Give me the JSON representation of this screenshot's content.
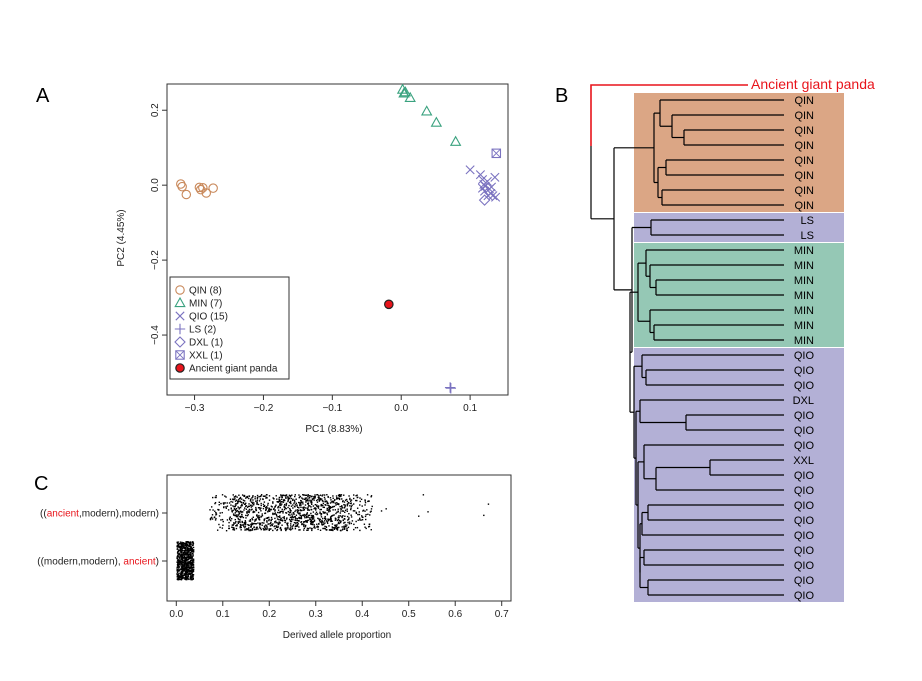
{
  "panels": {
    "a": "A",
    "b": "B",
    "c": "C"
  },
  "colors": {
    "QIN": "#c9895b",
    "MIN": "#3aa27f",
    "QIO": "#7b73c0",
    "LS": "#7b73c0",
    "DXL": "#7b73c0",
    "XXL": "#7b73c0",
    "ancient": "#e8141b",
    "qin_box": "#dba685",
    "min_box": "#95c8b5",
    "qio_box": "#b3b0d6"
  },
  "chart_data": [
    {
      "type": "scatter",
      "xlabel": "PC1 (8.83%)",
      "ylabel": "PC2 (4.45%)",
      "xlim": [
        -0.34,
        0.155
      ],
      "ylim": [
        -0.56,
        0.27
      ],
      "xticks": [
        -0.3,
        -0.2,
        -0.1,
        0.0,
        0.1
      ],
      "xtick_labels": [
        "−0.3",
        "−0.2",
        "−0.1",
        "0.0",
        "0.1"
      ],
      "yticks": [
        0.2,
        0.0,
        -0.2,
        -0.4
      ],
      "ytick_labels": [
        "0.2",
        "0.0",
        "−0.2",
        "−0.4"
      ],
      "legend": [
        {
          "label": "QIN (8)",
          "marker": "circle",
          "color": "#c9895b"
        },
        {
          "label": "MIN (7)",
          "marker": "triangle",
          "color": "#3aa27f"
        },
        {
          "label": "QIO (15)",
          "marker": "x",
          "color": "#7b73c0"
        },
        {
          "label": "LS (2)",
          "marker": "plus",
          "color": "#7b73c0"
        },
        {
          "label": "DXL (1)",
          "marker": "diamond",
          "color": "#7b73c0"
        },
        {
          "label": "XXL (1)",
          "marker": "square",
          "color": "#7b73c0"
        },
        {
          "label": "Ancient giant panda",
          "marker": "filled-circle",
          "color": "#e8141b"
        }
      ],
      "series": [
        {
          "name": "QIN (8)",
          "marker": "circle",
          "color": "#c9895b",
          "points": [
            [
              -0.32,
              0.003
            ],
            [
              -0.318,
              -0.004
            ],
            [
              -0.312,
              -0.025
            ],
            [
              -0.293,
              -0.006
            ],
            [
              -0.291,
              -0.012
            ],
            [
              -0.288,
              -0.007
            ],
            [
              -0.283,
              -0.021
            ],
            [
              -0.273,
              -0.008
            ]
          ]
        },
        {
          "name": "MIN (7)",
          "marker": "triangle",
          "color": "#3aa27f",
          "points": [
            [
              0.002,
              0.255
            ],
            [
              0.004,
              0.245
            ],
            [
              0.013,
              0.233
            ],
            [
              0.037,
              0.197
            ],
            [
              0.051,
              0.167
            ],
            [
              0.079,
              0.116
            ],
            [
              0.006,
              0.248
            ]
          ]
        },
        {
          "name": "QIO (15)",
          "marker": "x",
          "color": "#7b73c0",
          "points": [
            [
              0.1,
              0.041
            ],
            [
              0.115,
              0.028
            ],
            [
              0.12,
              0.002
            ],
            [
              0.118,
              -0.008
            ],
            [
              0.121,
              -0.016
            ],
            [
              0.125,
              0.01
            ],
            [
              0.126,
              -0.028
            ],
            [
              0.128,
              -0.01
            ],
            [
              0.13,
              -0.022
            ],
            [
              0.133,
              -0.028
            ],
            [
              0.136,
              0.021
            ],
            [
              0.137,
              -0.032
            ],
            [
              0.122,
              -0.003
            ],
            [
              0.131,
              -0.005
            ],
            [
              0.118,
              0.015
            ]
          ]
        },
        {
          "name": "LS (2)",
          "marker": "plus",
          "color": "#7b73c0",
          "points": [
            [
              0.071,
              -0.54
            ],
            [
              0.072,
              -0.542
            ]
          ]
        },
        {
          "name": "DXL (1)",
          "marker": "diamond",
          "color": "#7b73c0",
          "points": [
            [
              0.121,
              -0.04
            ]
          ]
        },
        {
          "name": "XXL (1)",
          "marker": "square",
          "color": "#7b73c0",
          "points": [
            [
              0.138,
              0.085
            ]
          ]
        },
        {
          "name": "Ancient giant panda",
          "marker": "filled-circle",
          "color": "#e8141b",
          "points": [
            [
              -0.018,
              -0.318
            ]
          ]
        }
      ]
    },
    {
      "type": "tree",
      "ancient_label": "Ancient giant panda",
      "leaves": [
        "QIN",
        "QIN",
        "QIN",
        "QIN",
        "QIN",
        "QIN",
        "QIN",
        "QIN",
        "LS",
        "LS",
        "MIN",
        "MIN",
        "MIN",
        "MIN",
        "MIN",
        "MIN",
        "MIN",
        "QIO",
        "QIO",
        "QIO",
        "DXL",
        "QIO",
        "QIO",
        "QIO",
        "XXL",
        "QIO",
        "QIO",
        "QIO",
        "QIO",
        "QIO",
        "QIO",
        "QIO",
        "QIO",
        "QIO"
      ],
      "groups": [
        {
          "name": "QIN",
          "from": 0,
          "to": 7,
          "color": "#dba685"
        },
        {
          "name": "LS",
          "from": 8,
          "to": 9,
          "color": "#b3b0d6"
        },
        {
          "name": "MIN",
          "from": 10,
          "to": 16,
          "color": "#95c8b5"
        },
        {
          "name": "QIO",
          "from": 17,
          "to": 33,
          "color": "#b3b0d6"
        }
      ]
    },
    {
      "type": "strip",
      "xlabel": "Derived allele proportion",
      "xlim": [
        -0.02,
        0.72
      ],
      "xticks": [
        0.0,
        0.1,
        0.2,
        0.3,
        0.4,
        0.5,
        0.6,
        0.7
      ],
      "xtick_labels": [
        "0.0",
        "0.1",
        "0.2",
        "0.3",
        "0.4",
        "0.5",
        "0.6",
        "0.7"
      ],
      "categories": [
        {
          "parts": [
            {
              "text": "((",
              "red": false
            },
            {
              "text": "ancient",
              "red": true
            },
            {
              "text": ",modern),modern)",
              "red": false
            }
          ],
          "summary": "derived allele proportion mostly 0.08–0.40, scattered outliers up to ~0.67"
        },
        {
          "parts": [
            {
              "text": "((modern,modern), ",
              "red": false
            },
            {
              "text": "ancient",
              "red": true
            },
            {
              "text": ")",
              "red": false
            }
          ],
          "summary": "derived allele proportion concentrated at 0.00–0.04"
        }
      ],
      "outliers": [
        0.41,
        0.44,
        0.45,
        0.52,
        0.53,
        0.54,
        0.66,
        0.67
      ]
    }
  ]
}
